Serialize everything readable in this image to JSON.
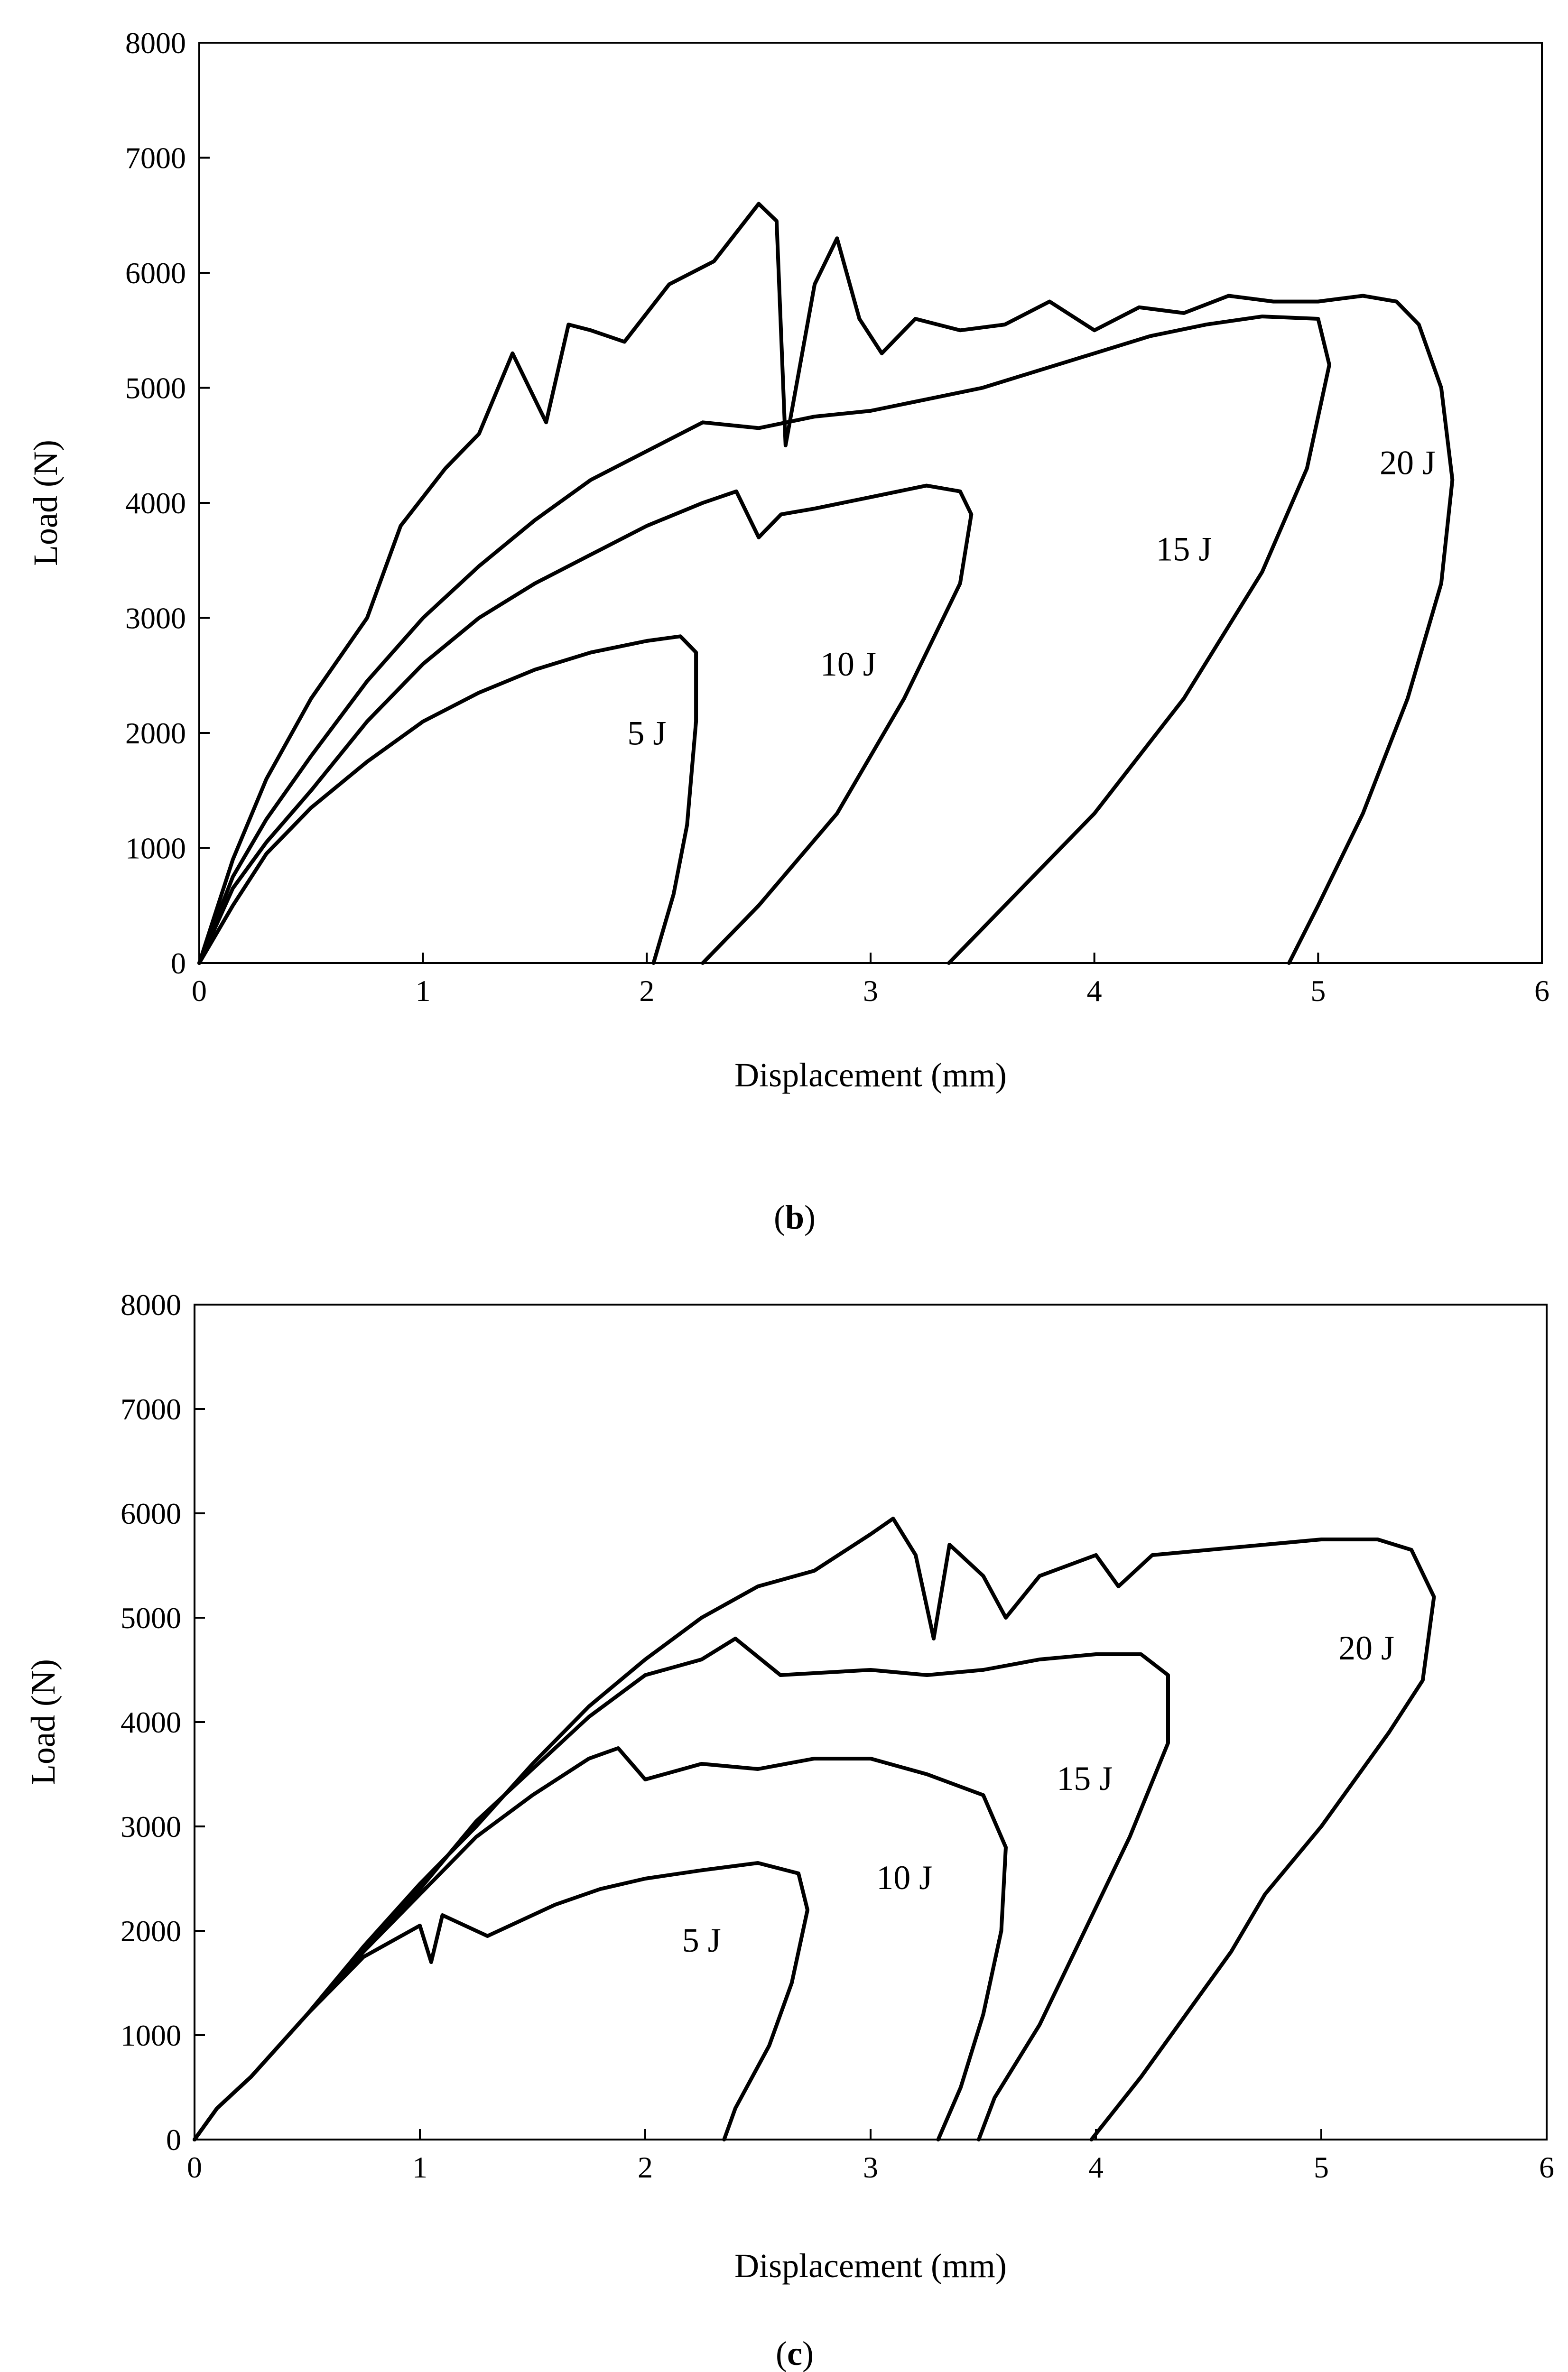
{
  "chart_data": [
    {
      "panel": "b",
      "caption_letter": "b",
      "type": "line",
      "title": "",
      "xlabel": "Displacement (mm)",
      "ylabel": "Load (N)",
      "xlim": [
        0,
        6
      ],
      "ylim": [
        0,
        8000
      ],
      "xticks": [
        "0",
        "1",
        "2",
        "3",
        "4",
        "5",
        "6"
      ],
      "yticks": [
        "0",
        "1000",
        "2000",
        "3000",
        "4000",
        "5000",
        "6000",
        "7000",
        "8000"
      ],
      "grid": false,
      "series": [
        {
          "name": "5 J",
          "label_at": [
            2.0,
            1900
          ],
          "points": [
            [
              0,
              0
            ],
            [
              0.15,
              500
            ],
            [
              0.3,
              950
            ],
            [
              0.5,
              1350
            ],
            [
              0.75,
              1750
            ],
            [
              1.0,
              2100
            ],
            [
              1.25,
              2350
            ],
            [
              1.5,
              2550
            ],
            [
              1.75,
              2700
            ],
            [
              2.0,
              2800
            ],
            [
              2.15,
              2840
            ],
            [
              2.22,
              2700
            ],
            [
              2.22,
              2100
            ],
            [
              2.18,
              1200
            ],
            [
              2.12,
              600
            ],
            [
              2.03,
              0
            ]
          ]
        },
        {
          "name": "10 J",
          "label_at": [
            2.9,
            2500
          ],
          "points": [
            [
              0,
              0
            ],
            [
              0.15,
              650
            ],
            [
              0.3,
              1050
            ],
            [
              0.5,
              1500
            ],
            [
              0.75,
              2100
            ],
            [
              1.0,
              2600
            ],
            [
              1.25,
              3000
            ],
            [
              1.5,
              3300
            ],
            [
              1.75,
              3550
            ],
            [
              2.0,
              3800
            ],
            [
              2.25,
              4000
            ],
            [
              2.4,
              4100
            ],
            [
              2.5,
              3700
            ],
            [
              2.6,
              3900
            ],
            [
              2.75,
              3950
            ],
            [
              3.0,
              4050
            ],
            [
              3.25,
              4150
            ],
            [
              3.4,
              4100
            ],
            [
              3.45,
              3900
            ],
            [
              3.4,
              3300
            ],
            [
              3.15,
              2300
            ],
            [
              2.85,
              1300
            ],
            [
              2.5,
              500
            ],
            [
              2.25,
              0
            ]
          ]
        },
        {
          "name": "15 J",
          "label_at": [
            4.4,
            3500
          ],
          "points": [
            [
              0,
              0
            ],
            [
              0.15,
              750
            ],
            [
              0.3,
              1250
            ],
            [
              0.5,
              1800
            ],
            [
              0.75,
              2450
            ],
            [
              1.0,
              3000
            ],
            [
              1.25,
              3450
            ],
            [
              1.5,
              3850
            ],
            [
              1.75,
              4200
            ],
            [
              2.0,
              4450
            ],
            [
              2.25,
              4700
            ],
            [
              2.5,
              4650
            ],
            [
              2.75,
              4750
            ],
            [
              3.0,
              4800
            ],
            [
              3.25,
              4900
            ],
            [
              3.5,
              5000
            ],
            [
              3.75,
              5150
            ],
            [
              4.0,
              5300
            ],
            [
              4.25,
              5450
            ],
            [
              4.5,
              5550
            ],
            [
              4.75,
              5620
            ],
            [
              5.0,
              5600
            ],
            [
              5.05,
              5200
            ],
            [
              4.95,
              4300
            ],
            [
              4.75,
              3400
            ],
            [
              4.4,
              2300
            ],
            [
              4.0,
              1300
            ],
            [
              3.6,
              500
            ],
            [
              3.35,
              0
            ]
          ]
        },
        {
          "name": "20 J",
          "label_at": [
            5.4,
            4250
          ],
          "points": [
            [
              0,
              0
            ],
            [
              0.15,
              900
            ],
            [
              0.3,
              1600
            ],
            [
              0.5,
              2300
            ],
            [
              0.75,
              3000
            ],
            [
              0.9,
              3800
            ],
            [
              1.1,
              4300
            ],
            [
              1.25,
              4600
            ],
            [
              1.4,
              5300
            ],
            [
              1.55,
              4700
            ],
            [
              1.65,
              5550
            ],
            [
              1.75,
              5500
            ],
            [
              1.9,
              5400
            ],
            [
              2.1,
              5900
            ],
            [
              2.3,
              6100
            ],
            [
              2.5,
              6600
            ],
            [
              2.58,
              6450
            ],
            [
              2.62,
              4500
            ],
            [
              2.75,
              5900
            ],
            [
              2.85,
              6300
            ],
            [
              2.95,
              5600
            ],
            [
              3.05,
              5300
            ],
            [
              3.2,
              5600
            ],
            [
              3.4,
              5500
            ],
            [
              3.6,
              5550
            ],
            [
              3.8,
              5750
            ],
            [
              4.0,
              5500
            ],
            [
              4.2,
              5700
            ],
            [
              4.4,
              5650
            ],
            [
              4.6,
              5800
            ],
            [
              4.8,
              5750
            ],
            [
              5.0,
              5750
            ],
            [
              5.2,
              5800
            ],
            [
              5.35,
              5750
            ],
            [
              5.45,
              5550
            ],
            [
              5.55,
              5000
            ],
            [
              5.6,
              4200
            ],
            [
              5.55,
              3300
            ],
            [
              5.4,
              2300
            ],
            [
              5.2,
              1300
            ],
            [
              5.0,
              500
            ],
            [
              4.87,
              0
            ]
          ]
        }
      ]
    },
    {
      "panel": "c",
      "caption_letter": "c",
      "type": "line",
      "title": "",
      "xlabel": "Displacement (mm)",
      "ylabel": "Load (N)",
      "xlim": [
        0,
        6
      ],
      "ylim": [
        0,
        8000
      ],
      "xticks": [
        "0",
        "1",
        "2",
        "3",
        "4",
        "5",
        "6"
      ],
      "yticks": [
        "0",
        "1000",
        "2000",
        "3000",
        "4000",
        "5000",
        "6000",
        "7000",
        "8000"
      ],
      "grid": false,
      "series": [
        {
          "name": "5 J",
          "label_at": [
            2.25,
            1800
          ],
          "points": [
            [
              0,
              0
            ],
            [
              0.1,
              300
            ],
            [
              0.25,
              600
            ],
            [
              0.5,
              1200
            ],
            [
              0.75,
              1750
            ],
            [
              1.0,
              2050
            ],
            [
              1.05,
              1700
            ],
            [
              1.1,
              2150
            ],
            [
              1.3,
              1950
            ],
            [
              1.6,
              2250
            ],
            [
              1.8,
              2400
            ],
            [
              2.0,
              2500
            ],
            [
              2.25,
              2580
            ],
            [
              2.5,
              2650
            ],
            [
              2.68,
              2550
            ],
            [
              2.72,
              2200
            ],
            [
              2.65,
              1500
            ],
            [
              2.55,
              900
            ],
            [
              2.4,
              300
            ],
            [
              2.35,
              0
            ]
          ]
        },
        {
          "name": "10 J",
          "label_at": [
            3.15,
            2400
          ],
          "points": [
            [
              0,
              0
            ],
            [
              0.1,
              300
            ],
            [
              0.25,
              600
            ],
            [
              0.5,
              1200
            ],
            [
              0.75,
              1800
            ],
            [
              1.0,
              2350
            ],
            [
              1.25,
              2900
            ],
            [
              1.5,
              3300
            ],
            [
              1.75,
              3650
            ],
            [
              1.88,
              3750
            ],
            [
              2.0,
              3450
            ],
            [
              2.25,
              3600
            ],
            [
              2.5,
              3550
            ],
            [
              2.75,
              3650
            ],
            [
              3.0,
              3650
            ],
            [
              3.25,
              3500
            ],
            [
              3.5,
              3300
            ],
            [
              3.6,
              2800
            ],
            [
              3.58,
              2000
            ],
            [
              3.5,
              1200
            ],
            [
              3.4,
              500
            ],
            [
              3.3,
              0
            ]
          ]
        },
        {
          "name": "15 J",
          "label_at": [
            3.95,
            3350
          ],
          "points": [
            [
              0,
              0
            ],
            [
              0.1,
              300
            ],
            [
              0.25,
              600
            ],
            [
              0.5,
              1200
            ],
            [
              0.75,
              1800
            ],
            [
              1.0,
              2400
            ],
            [
              1.25,
              3050
            ],
            [
              1.5,
              3550
            ],
            [
              1.75,
              4050
            ],
            [
              2.0,
              4450
            ],
            [
              2.25,
              4600
            ],
            [
              2.4,
              4800
            ],
            [
              2.6,
              4450
            ],
            [
              3.0,
              4500
            ],
            [
              3.25,
              4450
            ],
            [
              3.5,
              4500
            ],
            [
              3.75,
              4600
            ],
            [
              4.0,
              4650
            ],
            [
              4.2,
              4650
            ],
            [
              4.32,
              4450
            ],
            [
              4.32,
              3800
            ],
            [
              4.15,
              2900
            ],
            [
              3.95,
              2000
            ],
            [
              3.75,
              1100
            ],
            [
              3.55,
              400
            ],
            [
              3.48,
              0
            ]
          ]
        },
        {
          "name": "20 J",
          "label_at": [
            5.2,
            4600
          ],
          "points": [
            [
              0,
              0
            ],
            [
              0.1,
              300
            ],
            [
              0.25,
              600
            ],
            [
              0.5,
              1200
            ],
            [
              0.75,
              1850
            ],
            [
              1.0,
              2450
            ],
            [
              1.25,
              3000
            ],
            [
              1.5,
              3600
            ],
            [
              1.75,
              4150
            ],
            [
              2.0,
              4600
            ],
            [
              2.25,
              5000
            ],
            [
              2.5,
              5300
            ],
            [
              2.75,
              5450
            ],
            [
              3.0,
              5800
            ],
            [
              3.1,
              5950
            ],
            [
              3.2,
              5600
            ],
            [
              3.28,
              4800
            ],
            [
              3.35,
              5700
            ],
            [
              3.5,
              5400
            ],
            [
              3.6,
              5000
            ],
            [
              3.75,
              5400
            ],
            [
              4.0,
              5600
            ],
            [
              4.1,
              5300
            ],
            [
              4.25,
              5600
            ],
            [
              4.5,
              5650
            ],
            [
              4.75,
              5700
            ],
            [
              5.0,
              5750
            ],
            [
              5.25,
              5750
            ],
            [
              5.4,
              5650
            ],
            [
              5.5,
              5200
            ],
            [
              5.45,
              4400
            ],
            [
              5.3,
              3900
            ],
            [
              5.0,
              3000
            ],
            [
              4.75,
              2350
            ],
            [
              4.6,
              1800
            ],
            [
              4.4,
              1200
            ],
            [
              4.2,
              600
            ],
            [
              3.98,
              0
            ]
          ]
        }
      ]
    }
  ]
}
